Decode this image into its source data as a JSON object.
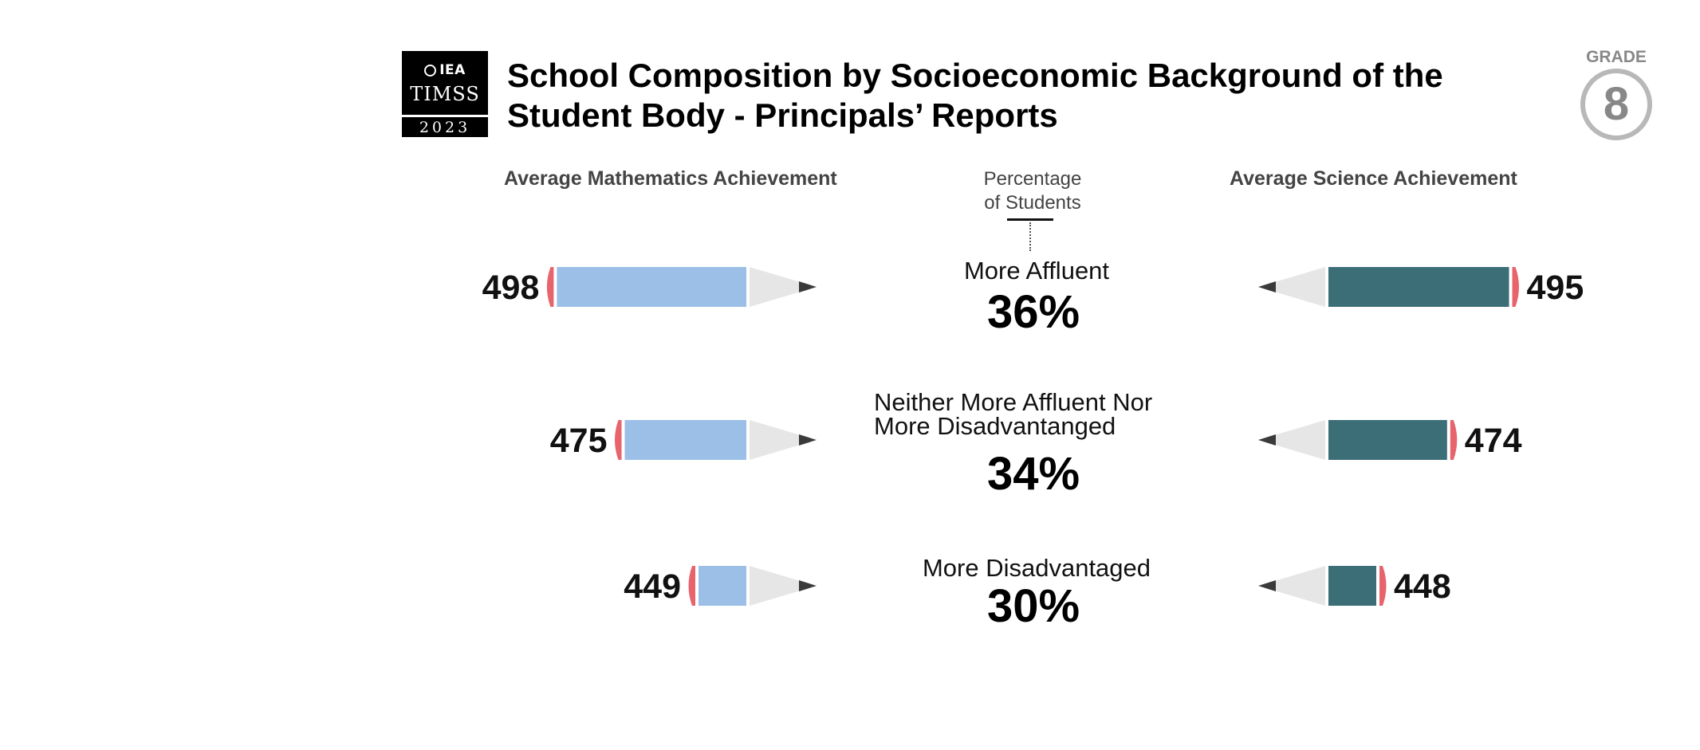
{
  "logo": {
    "org": "IEA",
    "study": "TIMSS",
    "year": "2023"
  },
  "title_line1": "School Composition by Socioeconomic Background of the",
  "title_line2": "Student Body - Principals’ Reports",
  "grade": {
    "label": "GRADE",
    "value": "8"
  },
  "headers": {
    "math": "Average Mathematics Achievement",
    "percentage_line1": "Percentage",
    "percentage_line2": "of Students",
    "science": "Average Science Achievement"
  },
  "colors": {
    "math_bar": "#9bbfe6",
    "science_bar": "#3c6e77",
    "eraser": "#e8646c",
    "pencil_tip": "#e6e6e6",
    "lead": "#3a3a3a"
  },
  "chart_data": {
    "type": "bar",
    "title": "School Composition by Socioeconomic Background of the Student Body - Principals’ Reports",
    "categories": [
      "More Affluent",
      "Neither More Affluent Nor More Disadvantanged",
      "More Disadvantaged"
    ],
    "category_lines": [
      [
        "More Affluent"
      ],
      [
        "Neither More Affluent Nor",
        "More Disadvantanged"
      ],
      [
        "More Disadvantaged"
      ]
    ],
    "percent_of_students": [
      "36%",
      "34%",
      "30%"
    ],
    "series": [
      {
        "name": "Average Mathematics Achievement",
        "values": [
          498,
          475,
          449
        ]
      },
      {
        "name": "Average Science Achievement",
        "values": [
          495,
          474,
          448
        ]
      }
    ]
  }
}
